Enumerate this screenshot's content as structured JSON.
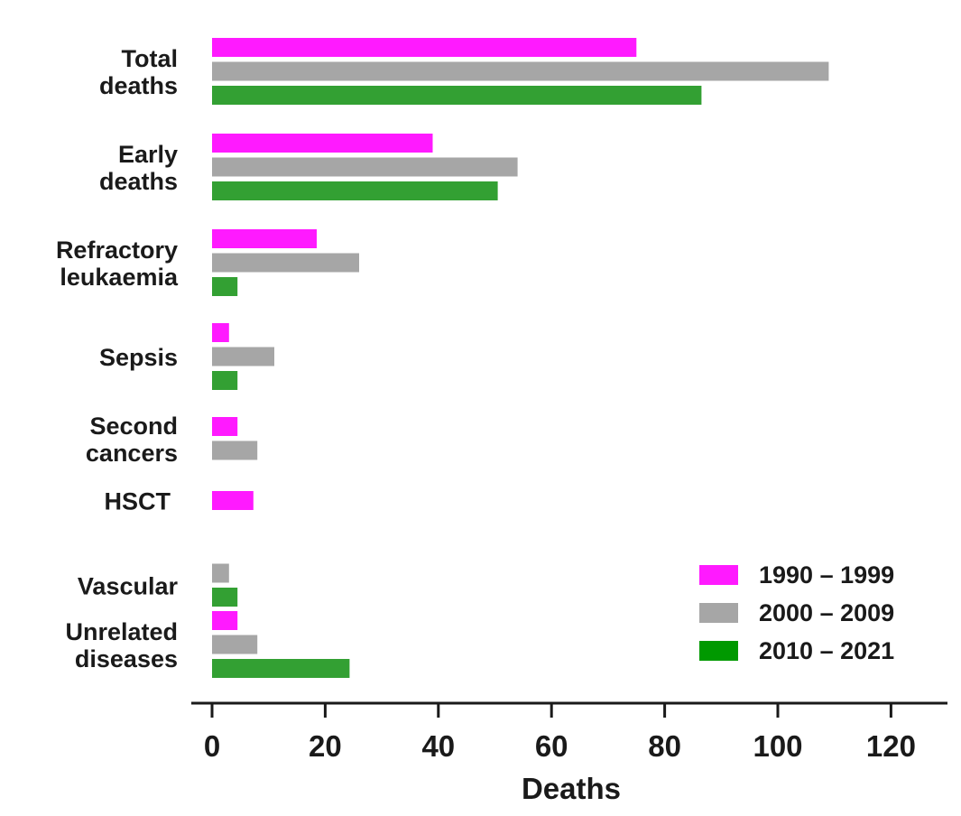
{
  "chart_data": {
    "type": "bar",
    "orientation": "horizontal",
    "title": "",
    "xlabel": "Deaths",
    "ylabel": "",
    "xlim": [
      0,
      130
    ],
    "xticks": [
      0,
      20,
      40,
      60,
      80,
      100,
      120
    ],
    "grid": false,
    "legend_position": "bottom-right",
    "categories": [
      [
        "Total",
        "deaths"
      ],
      [
        "Early",
        "deaths"
      ],
      [
        "Refractory",
        "leukaemia"
      ],
      [
        "Sepsis"
      ],
      [
        "Second",
        "cancers"
      ],
      [
        "HSCT"
      ],
      [
        "Vascular"
      ],
      [
        "Unrelated",
        "diseases"
      ]
    ],
    "series": [
      {
        "name": "1990 – 1999",
        "color": "#ff1aff",
        "values": [
          75,
          39,
          18.5,
          3,
          4.5,
          7.3,
          0,
          4.5
        ]
      },
      {
        "name": "2000 – 2009",
        "color": "#a6a6a6",
        "values": [
          109,
          54,
          26,
          11,
          8,
          0,
          3,
          8
        ]
      },
      {
        "name": "2010 – 2021",
        "color": "#33a033",
        "legend_color": "#009900",
        "values": [
          86.5,
          50.5,
          4.5,
          4.5,
          0,
          0,
          4.5,
          24.3
        ]
      }
    ]
  }
}
